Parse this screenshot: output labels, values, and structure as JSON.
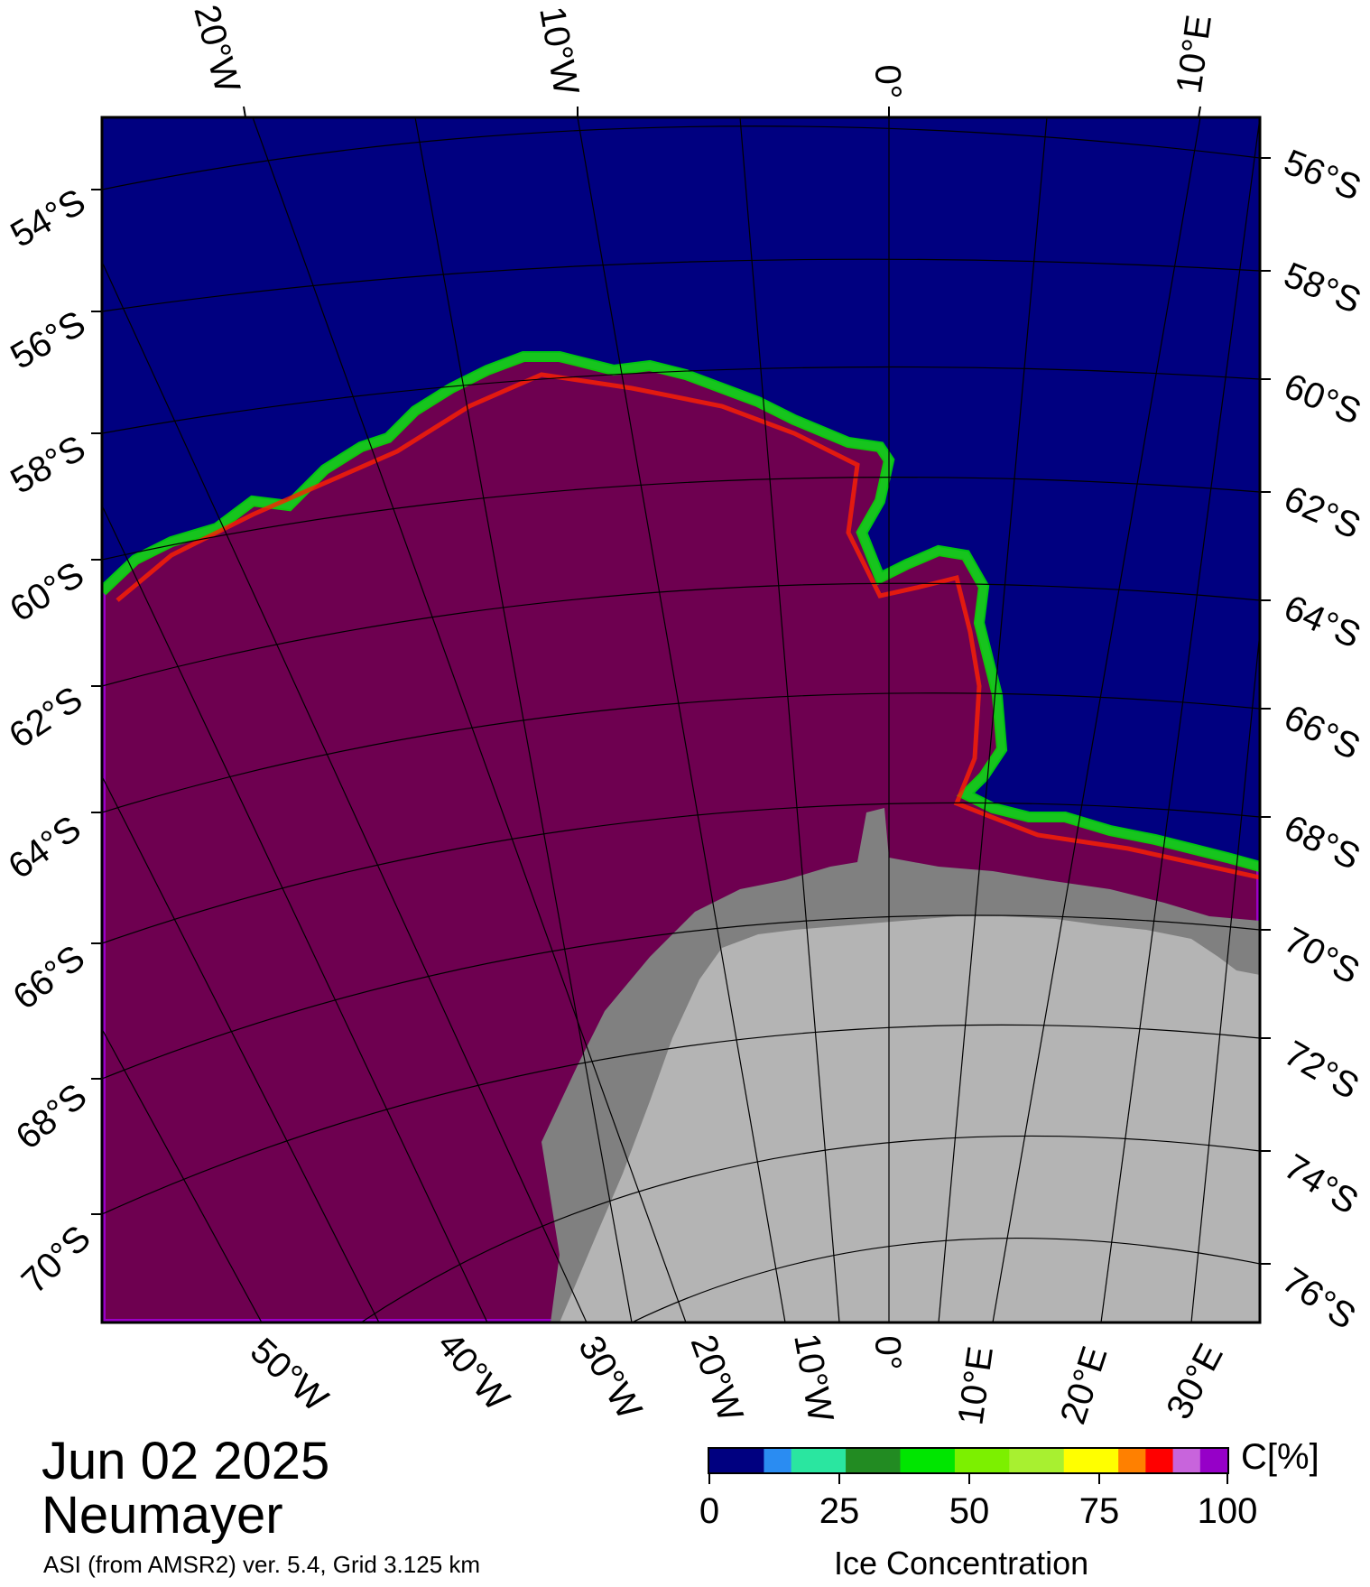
{
  "map": {
    "title_date": "Jun 02 2025",
    "title_station": "Neumayer",
    "subtitle": "ASI (from AMSR2) ver. 5.4,  Grid 3.125 km",
    "colors": {
      "ocean": "#000080",
      "ice_high": "#6e0050",
      "ice_purple": "#9a00c8",
      "land": "#b4b4b4",
      "ice_shelf": "#808080"
    },
    "top_lon_labels": [
      "20°W",
      "10°W",
      "0°",
      "10°E"
    ],
    "bottom_lon_labels": [
      "50°W",
      "40°W",
      "30°W",
      "20°W",
      "10°W",
      "0°",
      "10°E",
      "20°E",
      "30°E"
    ],
    "left_lat_labels": [
      "54°S",
      "56°S",
      "58°S",
      "60°S",
      "62°S",
      "64°S",
      "66°S",
      "68°S",
      "70°S"
    ],
    "right_lat_labels": [
      "56°S",
      "58°S",
      "60°S",
      "62°S",
      "64°S",
      "66°S",
      "68°S",
      "70°S",
      "72°S",
      "74°S",
      "76°S"
    ]
  },
  "colorbar": {
    "unit": "C[%]",
    "title": "Ice Concentration",
    "ticks": [
      "0",
      "25",
      "50",
      "75",
      "100"
    ],
    "colors": [
      "#000080",
      "#000080",
      "#2a8cf2",
      "#2ae6a0",
      "#2ae6a0",
      "#228b22",
      "#228b22",
      "#00e600",
      "#00e600",
      "#7cf000",
      "#7cf000",
      "#a8f030",
      "#a8f030",
      "#ffff00",
      "#ffff00",
      "#ff8000",
      "#ff0000",
      "#c864dc",
      "#9600c8"
    ]
  }
}
